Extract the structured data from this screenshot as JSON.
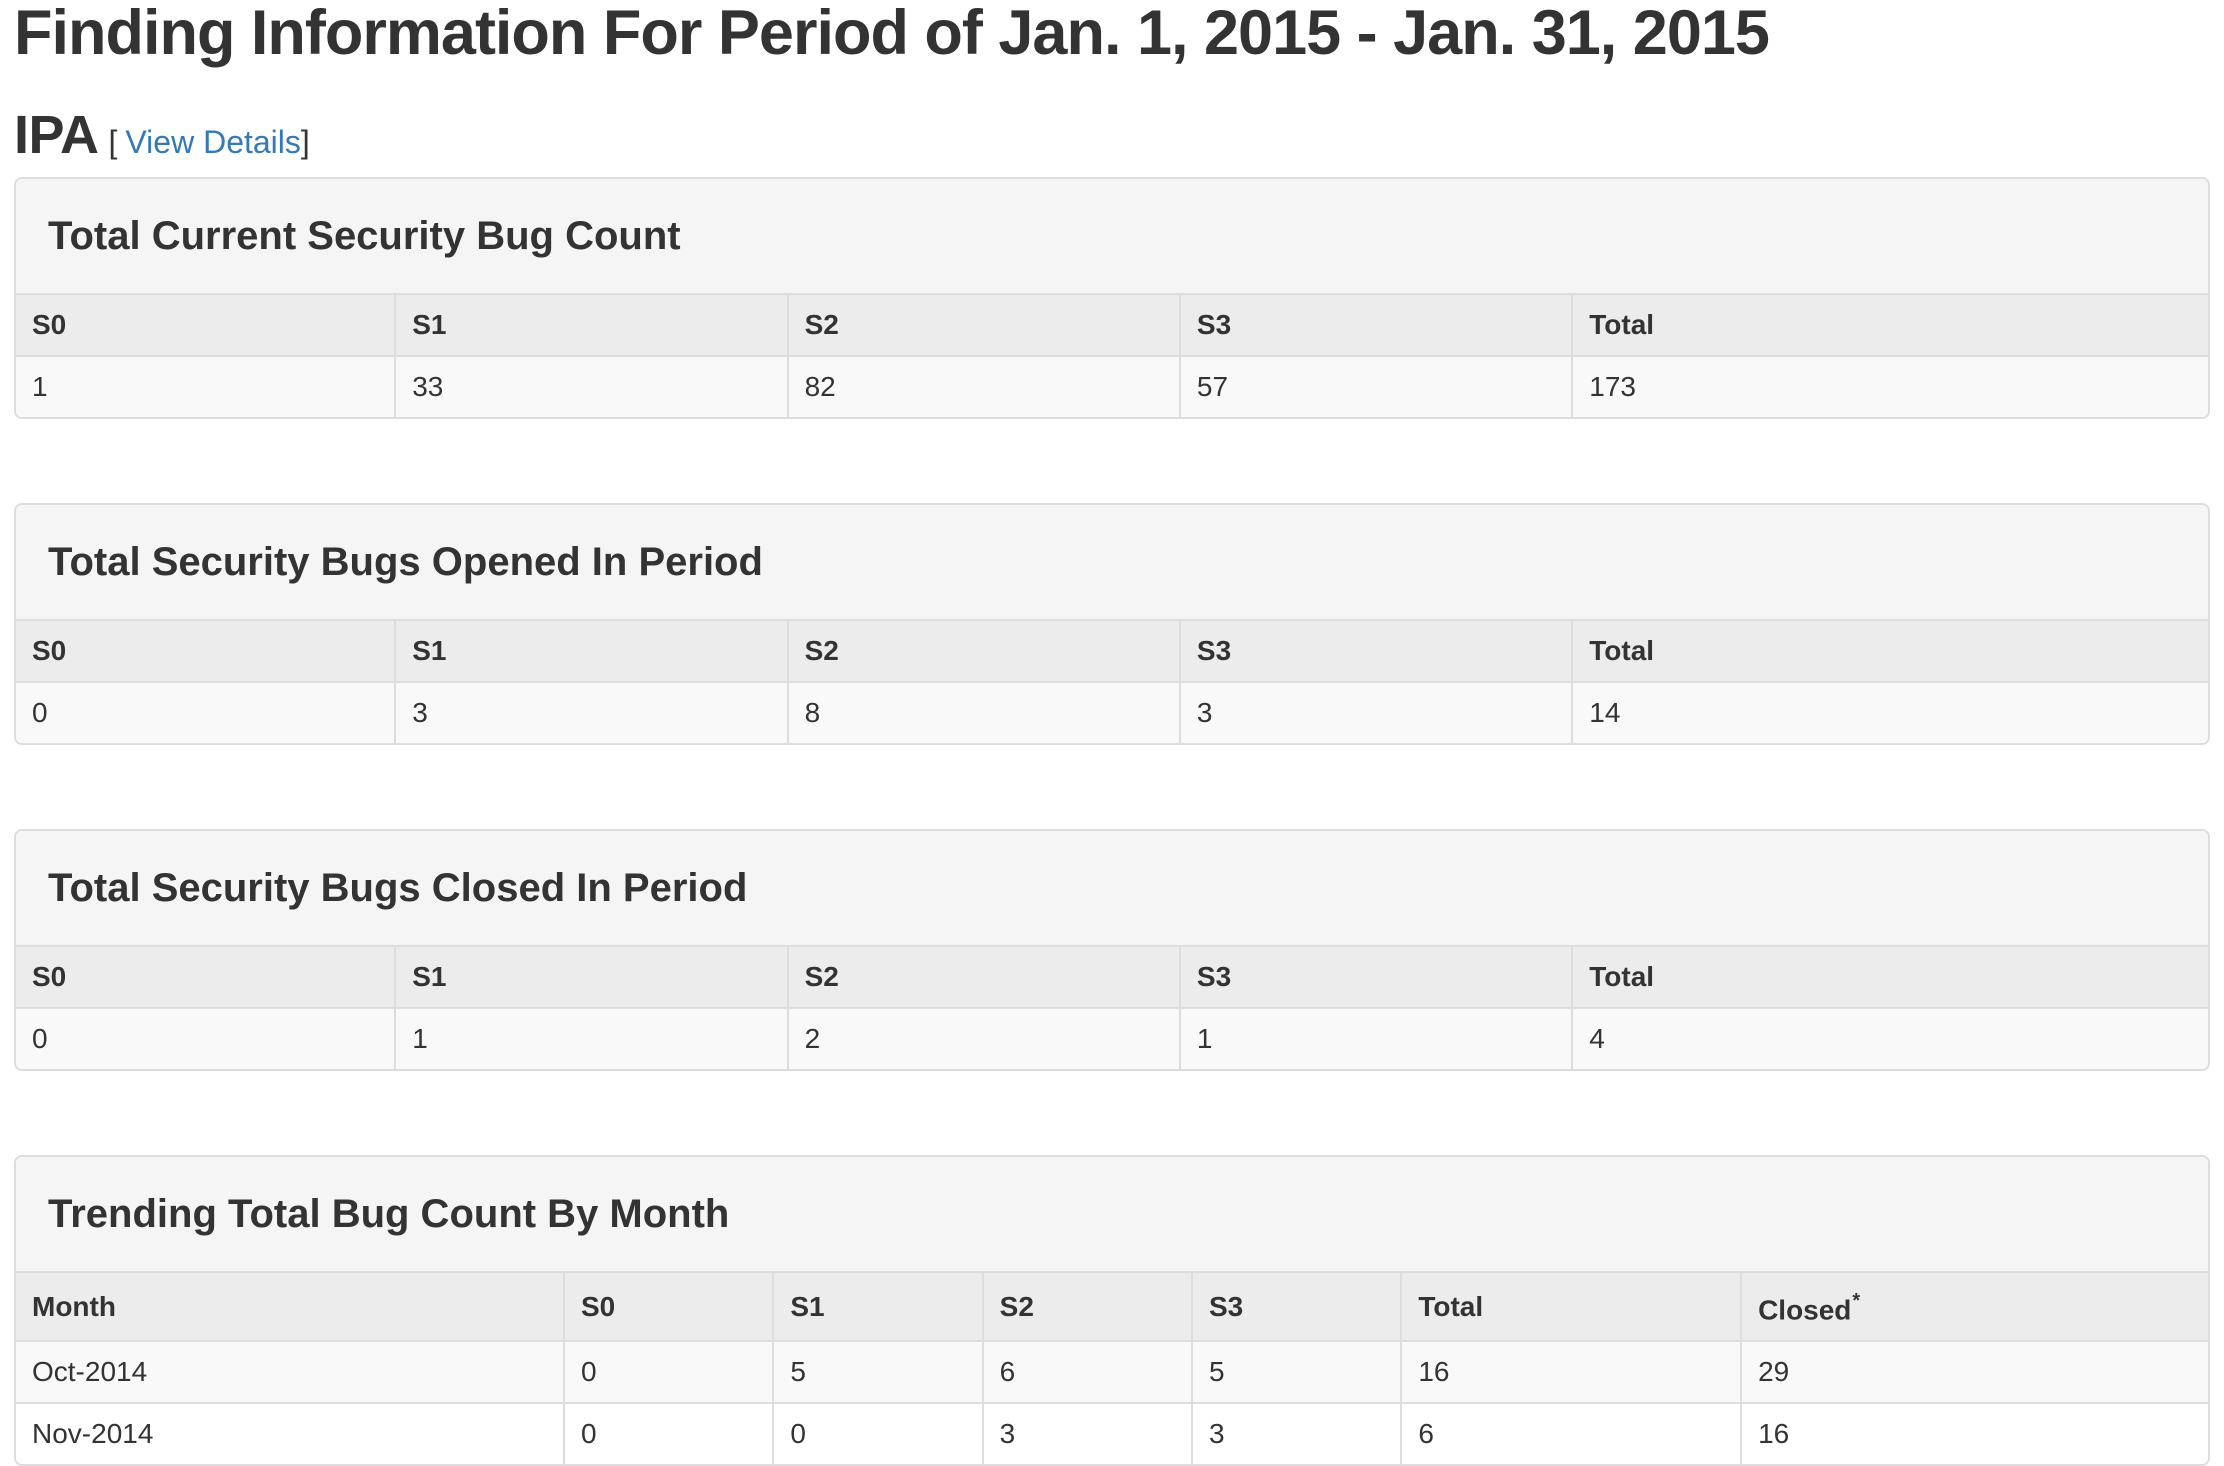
{
  "page_title": "Finding Information For Period of Jan. 1, 2015 - Jan. 31, 2015",
  "product": {
    "name": "IPA",
    "bracket_open": "[",
    "view_details_label": "View Details",
    "bracket_close": "]"
  },
  "summary_panels": [
    {
      "title": "Total Current Security Bug Count",
      "columns": [
        "S0",
        "S1",
        "S2",
        "S3",
        "Total"
      ],
      "values": [
        "1",
        "33",
        "82",
        "57",
        "173"
      ]
    },
    {
      "title": "Total Security Bugs Opened In Period",
      "columns": [
        "S0",
        "S1",
        "S2",
        "S3",
        "Total"
      ],
      "values": [
        "0",
        "3",
        "8",
        "3",
        "14"
      ]
    },
    {
      "title": "Total Security Bugs Closed In Period",
      "columns": [
        "S0",
        "S1",
        "S2",
        "S3",
        "Total"
      ],
      "values": [
        "0",
        "1",
        "2",
        "1",
        "4"
      ]
    }
  ],
  "trending_panel": {
    "title": "Trending Total Bug Count By Month",
    "columns": [
      "Month",
      "S0",
      "S1",
      "S2",
      "S3",
      "Total",
      "Closed"
    ],
    "closed_footnote_marker": "*",
    "rows": [
      [
        "Oct-2014",
        "0",
        "5",
        "6",
        "5",
        "16",
        "29"
      ],
      [
        "Nov-2014",
        "0",
        "0",
        "3",
        "3",
        "6",
        "16"
      ]
    ]
  },
  "colors": {
    "link_accent": "#337ab7",
    "panel_heading_bg": "#f5f5f5",
    "table_header_bg": "#ececec",
    "striped_row_bg": "#f9f9f9",
    "border": "#dddddd",
    "text": "#333333"
  }
}
